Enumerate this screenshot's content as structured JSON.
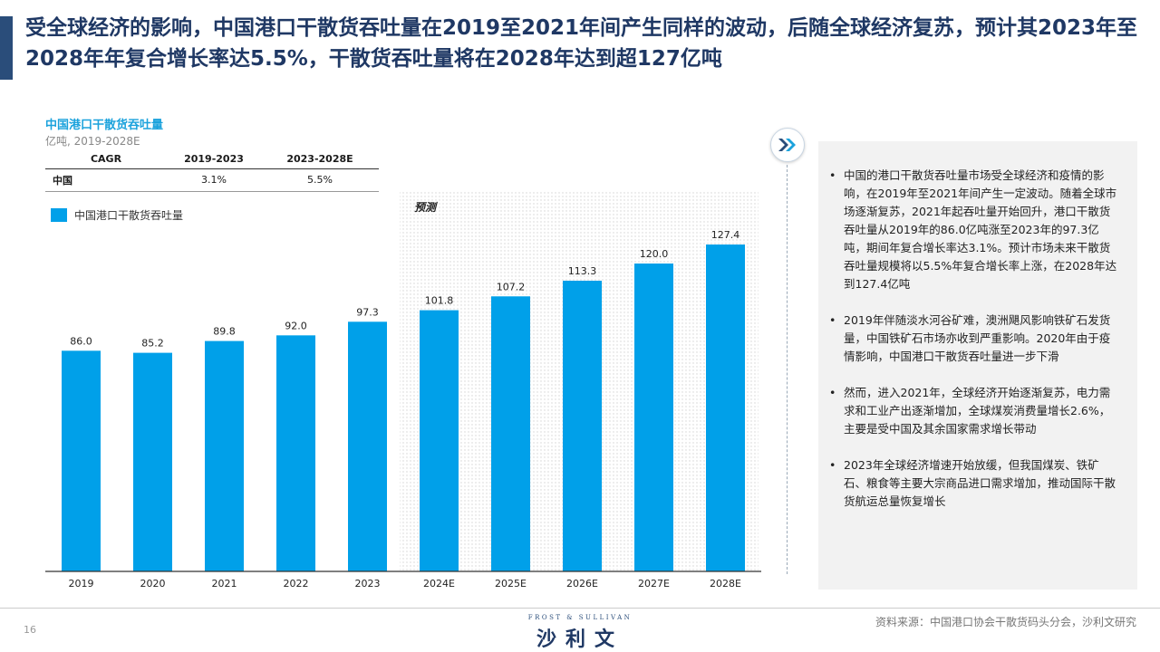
{
  "page": {
    "title": "受全球经济的影响，中国港口干散货吞吐量在2019至2021年间产生同样的波动，后随全球经济复苏，预计其2023年至2028年年复合增长率达5.5%，干散货吞吐量将在2028年达到超127亿吨",
    "page_number": "16",
    "source": "资料来源：中国港口协会干散货码头分会，沙利文研究",
    "logo_small": "FROST & SULLIVAN",
    "logo_main": "沙利文"
  },
  "table": {
    "headers": [
      "CAGR",
      "2019-2023",
      "2023-2028E"
    ],
    "row_label": "中国",
    "row_values": [
      "3.1%",
      "5.5%"
    ]
  },
  "chart_data": {
    "type": "bar",
    "title": "中国港口干散货吞吐量",
    "subtitle": "亿吨, 2019-2028E",
    "categories": [
      "2019",
      "2020",
      "2021",
      "2022",
      "2023",
      "2024E",
      "2025E",
      "2026E",
      "2027E",
      "2028E"
    ],
    "series": [
      {
        "name": "中国港口干散货吞吐量",
        "values": [
          86.0,
          85.2,
          89.8,
          92.0,
          97.3,
          101.8,
          107.2,
          113.3,
          120.0,
          127.4
        ]
      }
    ],
    "value_labels": [
      "86.0",
      "85.2",
      "89.8",
      "92.0",
      "97.3",
      "101.8",
      "107.2",
      "113.3",
      "120.0",
      "127.4"
    ],
    "forecast_label": "预测",
    "forecast_start_index": 5,
    "ylim": [
      0,
      138
    ],
    "grid": false,
    "legend_position": "top-left",
    "bar_color": "#00a0e9"
  },
  "info": {
    "bullets": [
      "中国的港口干散货吞吐量市场受全球经济和疫情的影响，在2019年至2021年间产生一定波动。随着全球市场逐渐复苏，2021年起吞吐量开始回升，港口干散货吞吐量从2019年的86.0亿吨涨至2023年的97.3亿吨，期间年复合增长率达3.1%。预计市场未来干散货吞吐量规模将以5.5%年复合增长率上涨，在2028年达到127.4亿吨",
      "2019年伴随淡水河谷矿难，澳洲飓风影响铁矿石发货量，中国铁矿石市场亦收到严重影响。2020年由于疫情影响，中国港口干散货吞吐量进一步下滑",
      "然而，进入2021年，全球经济开始逐渐复苏，电力需求和工业产出逐渐增加，全球煤炭消费量增长2.6%，主要是受中国及其余国家需求增长带动",
      "2023年全球经济增速开始放缓，但我国煤炭、铁矿石、粮食等主要大宗商品进口需求增加，推动国际干散货航运总量恢复增长"
    ]
  }
}
